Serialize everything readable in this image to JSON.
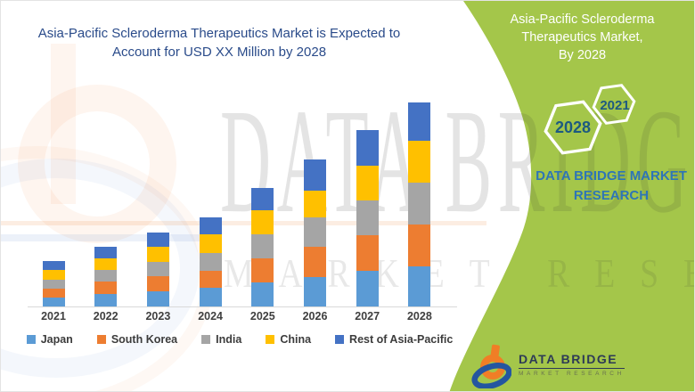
{
  "page_title": "Asia-Pacific Scleroderma Therapeutics Market infographic",
  "main_title": {
    "line1": "Asia-Pacific Scleroderma Therapeutics Market is Expected to",
    "line2": "Account for USD XX Million by 2028"
  },
  "chart_data": {
    "type": "bar",
    "stacked": true,
    "title": "Asia-Pacific Scleroderma Therapeutics Market is Expected to Account for USD XX Million by 2028",
    "xlabel": "",
    "ylabel": "",
    "unit": "USD XX Million (exact values not disclosed; series values are relative heights)",
    "grid": false,
    "legend_position": "bottom",
    "categories": [
      "2021",
      "2022",
      "2023",
      "2024",
      "2025",
      "2026",
      "2027",
      "2028"
    ],
    "series": [
      {
        "name": "Japan",
        "color": "#5B9BD5",
        "values": [
          10,
          14,
          17,
          21,
          27,
          33,
          40,
          45
        ]
      },
      {
        "name": "South Korea",
        "color": "#ED7D31",
        "values": [
          10,
          14,
          17,
          19,
          27,
          34,
          40,
          47
        ]
      },
      {
        "name": "India",
        "color": "#A5A5A5",
        "values": [
          10,
          13,
          16,
          20,
          27,
          33,
          39,
          47
        ]
      },
      {
        "name": "China",
        "color": "#FFC000",
        "values": [
          11,
          13,
          17,
          21,
          27,
          30,
          39,
          47
        ]
      },
      {
        "name": "Rest of Asia-Pacific",
        "color": "#4472C4",
        "values": [
          10,
          13,
          16,
          19,
          25,
          35,
          40,
          43
        ]
      }
    ],
    "totals_relative": [
      51,
      67,
      83,
      100,
      133,
      165,
      198,
      229
    ]
  },
  "banner": {
    "color": "#A4C64A",
    "title_lines": [
      "Asia-Pacific Scleroderma",
      "Therapeutics Market,",
      "By 2028"
    ],
    "hexagons": [
      {
        "label": "2028"
      },
      {
        "label": "2021"
      }
    ],
    "brand_line1": "DATA BRIDGE MARKET",
    "brand_line2": "RESEARCH"
  },
  "logo": {
    "name": "DATA BRIDGE",
    "subtitle": "MARKET RESEARCH"
  },
  "watermark": {
    "text_big": "DATA BRIDGE",
    "text_small": "MARKET RESEARCH"
  },
  "colors": {
    "title_blue": "#2A4B8A",
    "banner_green": "#A4C64A",
    "brand_blue": "#2E75B6",
    "hex_year_blue": "#1D5A80",
    "axis_label": "#3F3F3F",
    "axis_line": "#D9D9D9"
  }
}
